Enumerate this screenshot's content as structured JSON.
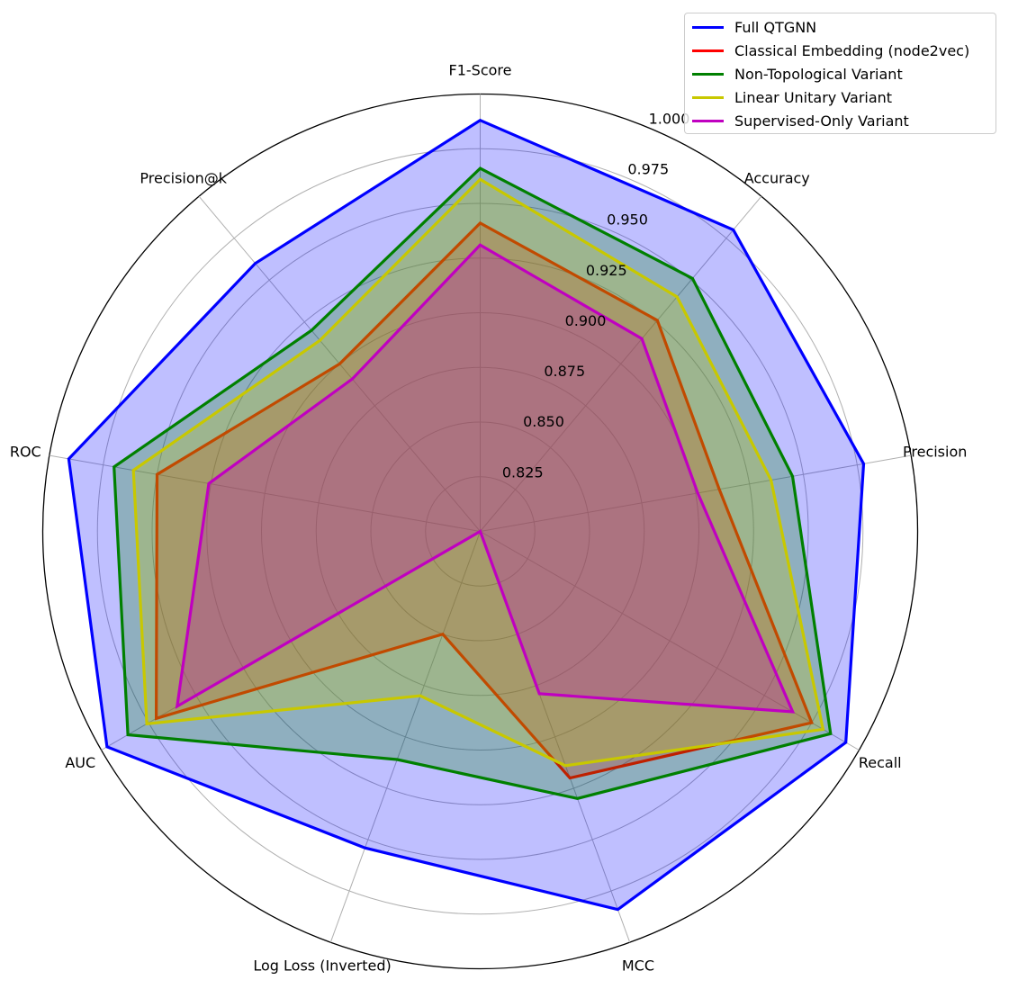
{
  "chart_data": {
    "type": "radar",
    "categories": [
      "F1-Score",
      "Accuracy",
      "Precision",
      "Recall",
      "MCC",
      "Log Loss (Inverted)",
      "AUC",
      "ROC",
      "Precision@k"
    ],
    "rlim": [
      0.8,
      1.0
    ],
    "rticks": [
      "0.825",
      "0.850",
      "0.875",
      "0.900",
      "0.925",
      "0.950",
      "0.975",
      "1.000"
    ],
    "rtick_values": [
      0.825,
      0.85,
      0.875,
      0.9,
      0.925,
      0.95,
      0.975,
      1.0
    ],
    "grid": true,
    "legend_position": "top-right",
    "series": [
      {
        "name": "Full QTGNN",
        "color": "#0000ff",
        "values": [
          0.988,
          0.98,
          0.978,
          0.993,
          0.984,
          0.954,
          0.997,
          0.991,
          0.96
        ]
      },
      {
        "name": "Classical Embedding (node2vec)",
        "color": "#ff0000",
        "values": [
          0.941,
          0.926,
          0.911,
          0.975,
          0.92,
          0.85,
          0.971,
          0.95,
          0.9
        ]
      },
      {
        "name": "Non-Topological Variant",
        "color": "#008000",
        "values": [
          0.966,
          0.951,
          0.945,
          0.985,
          0.93,
          0.911,
          0.986,
          0.97,
          0.92
        ]
      },
      {
        "name": "Linear Unitary Variant",
        "color": "#c8c800",
        "values": [
          0.961,
          0.94,
          0.935,
          0.981,
          0.914,
          0.88,
          0.976,
          0.961,
          0.914
        ]
      },
      {
        "name": "Supervised-Only Variant",
        "color": "#c000c0",
        "values": [
          0.931,
          0.915,
          0.901,
          0.965,
          0.879,
          0.8,
          0.96,
          0.926,
          0.891
        ]
      }
    ]
  }
}
